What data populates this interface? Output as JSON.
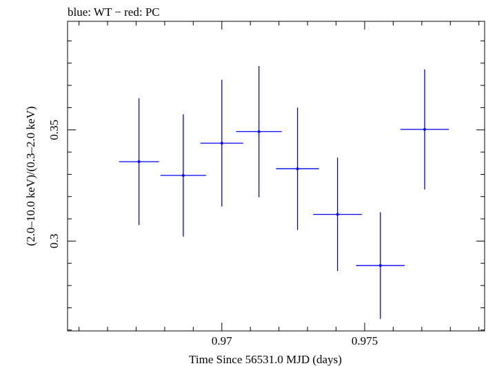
{
  "chart_data": {
    "type": "scatter",
    "title": "blue: WT − red: PC",
    "xlabel": "Time Since 56531.0 MJD (days)",
    "ylabel": "(2.0–10.0 keV)/(0.3–2.0 keV)",
    "xlim": [
      0.9646,
      0.9792
    ],
    "ylim": [
      0.2596,
      0.3988
    ],
    "x_ticks": [
      {
        "value": 0.97,
        "label": "0.97"
      },
      {
        "value": 0.975,
        "label": "0.975"
      }
    ],
    "y_ticks": [
      {
        "value": 0.3,
        "label": "0.3"
      },
      {
        "value": 0.35,
        "label": "0.35"
      }
    ],
    "x_minor_step": 0.001,
    "y_minor_step": 0.01,
    "grid": false,
    "series": [
      {
        "name": "WT",
        "color": "#0000ee",
        "points": [
          {
            "x": 0.9671,
            "y": 0.3357,
            "xerr": 0.0007,
            "yerr": 0.0285
          },
          {
            "x": 0.96865,
            "y": 0.3295,
            "xerr": 0.0008,
            "yerr": 0.0275
          },
          {
            "x": 0.97,
            "y": 0.344,
            "xerr": 0.00075,
            "yerr": 0.0285
          },
          {
            "x": 0.9713,
            "y": 0.3492,
            "xerr": 0.0008,
            "yerr": 0.0295
          },
          {
            "x": 0.97265,
            "y": 0.3325,
            "xerr": 0.00075,
            "yerr": 0.0275
          },
          {
            "x": 0.97405,
            "y": 0.312,
            "xerr": 0.00085,
            "yerr": 0.0255
          },
          {
            "x": 0.97555,
            "y": 0.289,
            "xerr": 0.00085,
            "yerr": 0.024
          },
          {
            "x": 0.9771,
            "y": 0.3502,
            "xerr": 0.00085,
            "yerr": 0.027
          }
        ]
      }
    ]
  }
}
